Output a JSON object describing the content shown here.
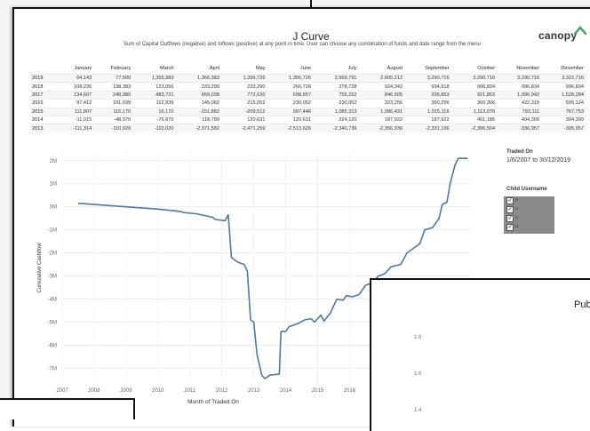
{
  "report": {
    "title": "J Curve",
    "subtitle": "Sum of Capital Outflows (negative) and Inflows (positive) at any point in time. User can choose any combination of funds and date range from the menu",
    "brand": "canopy"
  },
  "table": {
    "columns": [
      "January",
      "February",
      "March",
      "April",
      "May",
      "June",
      "July",
      "August",
      "September",
      "October",
      "November",
      "December"
    ],
    "rows": [
      {
        "year": "2019",
        "values": [
          "64,143",
          "77,500",
          "1,355,383",
          "1,366,383",
          "1,356,726",
          "1,356,726",
          "2,569,791",
          "2,605,212",
          "3,290,716",
          "3,290,716",
          "3,290,716",
          "3,322,716"
        ]
      },
      {
        "year": "2018",
        "values": [
          "108,236",
          "138,383",
          "123,056",
          "233,290",
          "233,290",
          "266,728",
          "278,728",
          "924,342",
          "934,918",
          "996,834",
          "996,834",
          "996,834"
        ]
      },
      {
        "year": "2017",
        "values": [
          "134,607",
          "248,980",
          "483,721",
          "669,038",
          "772,630",
          "698,957",
          "755,152",
          "846,505",
          "936,853",
          "921,853",
          "1,096,942",
          "1,528,284"
        ]
      },
      {
        "year": "2016",
        "values": [
          "97,412",
          "101,939",
          "112,939",
          "145,082",
          "215,052",
          "230,052",
          "230,052",
          "323,256",
          "360,256",
          "360,306",
          "422,319",
          "505,124"
        ]
      },
      {
        "year": "2015",
        "values": [
          "111,807",
          "116,170",
          "16,170",
          "-151,882",
          "-209,512",
          "997,446",
          "1,085,313",
          "1,086,431",
          "1,015,116",
          "1,113,076",
          "793,111",
          "767,753"
        ]
      },
      {
        "year": "2014",
        "values": [
          "-11,015",
          "-48,970",
          "-76,970",
          "118,799",
          "120,631",
          "120,631",
          "224,120",
          "187,922",
          "187,922",
          "401,186",
          "404,309",
          "304,309"
        ]
      },
      {
        "year": "2013",
        "values": [
          "-111,314",
          "-110,020",
          "-110,020",
          "-2,371,582",
          "-2,471,259",
          "-2,513,626",
          "-2,340,736",
          "-2,356,936",
          "-2,331,136",
          "-2,306,504",
          "-336,957",
          "-305,957"
        ]
      }
    ]
  },
  "filters": {
    "traded_on_label": "Traded On",
    "traded_on_range": "1/6/2007 to 30/12/2019",
    "child_username_label": "Child Username",
    "child_items": [
      "u",
      "u",
      "u",
      "u"
    ]
  },
  "chart_data": {
    "type": "line",
    "xlabel": "Month of Traded On",
    "ylabel": "Cumulative Cashflow",
    "x_ticks": [
      "2007",
      "2008",
      "2009",
      "2010",
      "2011",
      "2012",
      "2013",
      "2014",
      "2015",
      "2016"
    ],
    "y_ticks": [
      "2M",
      "1M",
      "0M",
      "-1M",
      "-2M",
      "-3M",
      "-4M",
      "-5M",
      "-6M",
      "-7M"
    ],
    "ylim": [
      -7.6,
      2.3
    ],
    "xlim": [
      2007.0,
      2019.8
    ],
    "series": [
      {
        "values": [
          [
            2007.5,
            0.15
          ],
          [
            2008.0,
            0.1
          ],
          [
            2009.0,
            0.0
          ],
          [
            2010.0,
            -0.1
          ],
          [
            2010.7,
            -0.2
          ],
          [
            2010.8,
            -0.25
          ],
          [
            2011.2,
            -0.3
          ],
          [
            2011.7,
            -0.45
          ],
          [
            2011.8,
            -0.55
          ],
          [
            2012.1,
            -0.6
          ],
          [
            2012.2,
            -0.35
          ],
          [
            2012.3,
            -2.2
          ],
          [
            2012.5,
            -2.4
          ],
          [
            2012.7,
            -2.5
          ],
          [
            2012.8,
            -2.8
          ],
          [
            2012.9,
            -4.9
          ],
          [
            2013.0,
            -5.0
          ],
          [
            2013.1,
            -6.4
          ],
          [
            2013.25,
            -7.3
          ],
          [
            2013.35,
            -7.45
          ],
          [
            2013.5,
            -7.3
          ],
          [
            2013.8,
            -7.25
          ],
          [
            2013.85,
            -5.4
          ],
          [
            2014.0,
            -5.4
          ],
          [
            2014.1,
            -5.2
          ],
          [
            2014.4,
            -5.05
          ],
          [
            2014.6,
            -4.9
          ],
          [
            2014.8,
            -4.85
          ],
          [
            2014.9,
            -5.0
          ],
          [
            2015.1,
            -4.7
          ],
          [
            2015.2,
            -4.95
          ],
          [
            2015.4,
            -4.6
          ],
          [
            2015.6,
            -4.0
          ],
          [
            2015.8,
            -4.05
          ],
          [
            2015.9,
            -3.85
          ],
          [
            2016.1,
            -3.9
          ],
          [
            2016.3,
            -3.8
          ],
          [
            2016.5,
            -3.4
          ],
          [
            2016.7,
            -3.3
          ],
          [
            2016.9,
            -3.0
          ],
          [
            2017.1,
            -2.9
          ],
          [
            2017.3,
            -2.6
          ],
          [
            2017.6,
            -2.5
          ],
          [
            2017.8,
            -2.0
          ],
          [
            2018.0,
            -1.8
          ],
          [
            2018.2,
            -1.6
          ],
          [
            2018.35,
            -1.0
          ],
          [
            2018.6,
            -0.9
          ],
          [
            2018.8,
            -0.5
          ],
          [
            2018.9,
            0.1
          ],
          [
            2019.05,
            0.2
          ],
          [
            2019.15,
            1.0
          ],
          [
            2019.3,
            1.8
          ],
          [
            2019.4,
            2.1
          ],
          [
            2019.7,
            2.1
          ]
        ]
      }
    ],
    "grid": true
  },
  "second_panel": {
    "title": "Pub",
    "y_ticks": [
      "1.8",
      "1.6",
      "1.4"
    ]
  }
}
